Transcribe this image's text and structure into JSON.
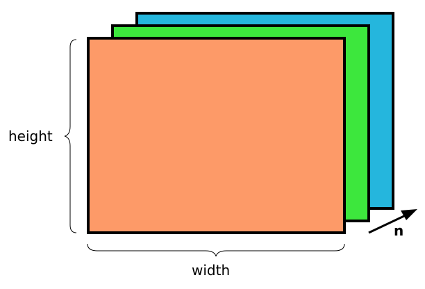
{
  "labels": {
    "height": "height",
    "width": "width",
    "normal": "n"
  },
  "layers": [
    {
      "name": "back-layer",
      "color": "#25b6dd"
    },
    {
      "name": "middle-layer",
      "color": "#3de73d"
    },
    {
      "name": "front-layer",
      "color": "#fd9a68"
    }
  ],
  "stroke_color": "#000000"
}
